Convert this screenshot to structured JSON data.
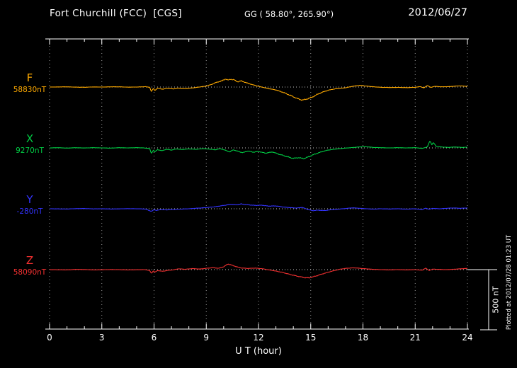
{
  "header": {
    "station": "Fort Churchill (FCC)  [CGS]",
    "coords": "GG ( 58.80°, 265.90°)",
    "date": "2012/06/27"
  },
  "axis": {
    "xlabel": "U T (hour)",
    "ticks": [
      "0",
      "3",
      "6",
      "9",
      "12",
      "15",
      "18",
      "21",
      "24"
    ]
  },
  "scale_bar": {
    "label": "500 nT",
    "value_nT": 500
  },
  "plotted_at": "Plotted at 2012/07/28 01:23 UT",
  "chart_data": {
    "type": "line",
    "title": "Fort Churchill (FCC) magnetogram 2012/06/27",
    "xlabel": "U T (hour)",
    "x_range": [
      0,
      24
    ],
    "grid_hours": [
      0,
      3,
      6,
      9,
      12,
      15,
      18,
      21,
      24
    ],
    "grid": "dotted",
    "scale_nT_per_division": 500,
    "series": [
      {
        "name": "F",
        "baseline_label": "58830nT",
        "baseline_nT": 58830,
        "color": "#ffaa00",
        "points": [
          [
            0,
            0
          ],
          [
            0.5,
            1
          ],
          [
            1,
            2
          ],
          [
            1.5,
            -1
          ],
          [
            2,
            -2
          ],
          [
            2.5,
            1
          ],
          [
            3,
            0
          ],
          [
            3.5,
            2
          ],
          [
            4,
            2
          ],
          [
            4.5,
            -1
          ],
          [
            5,
            0
          ],
          [
            5.5,
            3
          ],
          [
            5.75,
            -2
          ],
          [
            5.85,
            -40
          ],
          [
            5.95,
            -12
          ],
          [
            6.05,
            -28
          ],
          [
            6.2,
            -10
          ],
          [
            6.5,
            -18
          ],
          [
            6.8,
            -10
          ],
          [
            7.1,
            -16
          ],
          [
            7.4,
            -9
          ],
          [
            7.7,
            -14
          ],
          [
            8,
            -10
          ],
          [
            8.3,
            -6
          ],
          [
            8.6,
            0
          ],
          [
            9,
            8
          ],
          [
            9.3,
            22
          ],
          [
            9.6,
            40
          ],
          [
            9.9,
            52
          ],
          [
            10.1,
            68
          ],
          [
            10.25,
            58
          ],
          [
            10.4,
            66
          ],
          [
            10.6,
            60
          ],
          [
            10.8,
            44
          ],
          [
            11,
            52
          ],
          [
            11.3,
            36
          ],
          [
            11.6,
            22
          ],
          [
            12,
            6
          ],
          [
            12.3,
            -4
          ],
          [
            12.6,
            -14
          ],
          [
            13,
            -24
          ],
          [
            13.4,
            -44
          ],
          [
            13.8,
            -68
          ],
          [
            14.2,
            -95
          ],
          [
            14.5,
            -110
          ],
          [
            14.8,
            -100
          ],
          [
            15.1,
            -84
          ],
          [
            15.4,
            -60
          ],
          [
            15.8,
            -36
          ],
          [
            16.2,
            -20
          ],
          [
            16.6,
            -12
          ],
          [
            17,
            -6
          ],
          [
            17.4,
            6
          ],
          [
            17.8,
            14
          ],
          [
            18.2,
            8
          ],
          [
            18.6,
            2
          ],
          [
            19,
            -2
          ],
          [
            19.5,
            -4
          ],
          [
            20,
            -3
          ],
          [
            20.5,
            -5
          ],
          [
            21,
            -2
          ],
          [
            21.3,
            4
          ],
          [
            21.5,
            -8
          ],
          [
            21.7,
            14
          ],
          [
            21.9,
            -4
          ],
          [
            22.1,
            6
          ],
          [
            22.5,
            2
          ],
          [
            23,
            4
          ],
          [
            23.5,
            10
          ],
          [
            23.8,
            8
          ],
          [
            24,
            6
          ]
        ]
      },
      {
        "name": "X",
        "baseline_label": "9270nT",
        "baseline_nT": 9270,
        "color": "#00cc44",
        "points": [
          [
            0,
            0
          ],
          [
            0.5,
            2
          ],
          [
            1,
            -2
          ],
          [
            1.5,
            2
          ],
          [
            2,
            -1
          ],
          [
            2.5,
            2
          ],
          [
            3,
            0
          ],
          [
            3.5,
            -2
          ],
          [
            4,
            2
          ],
          [
            4.5,
            0
          ],
          [
            5,
            2
          ],
          [
            5.4,
            0
          ],
          [
            5.75,
            -6
          ],
          [
            5.85,
            -48
          ],
          [
            5.95,
            -18
          ],
          [
            6.05,
            -34
          ],
          [
            6.2,
            -14
          ],
          [
            6.45,
            -24
          ],
          [
            6.7,
            -12
          ],
          [
            7,
            -18
          ],
          [
            7.3,
            -8
          ],
          [
            7.6,
            -14
          ],
          [
            8,
            -8
          ],
          [
            8.4,
            -12
          ],
          [
            8.8,
            -6
          ],
          [
            9.2,
            -10
          ],
          [
            9.5,
            -16
          ],
          [
            9.8,
            -6
          ],
          [
            10.1,
            -20
          ],
          [
            10.35,
            -34
          ],
          [
            10.55,
            -16
          ],
          [
            10.8,
            -28
          ],
          [
            11.1,
            -40
          ],
          [
            11.4,
            -26
          ],
          [
            11.7,
            -36
          ],
          [
            12,
            -30
          ],
          [
            12.4,
            -44
          ],
          [
            12.8,
            -34
          ],
          [
            13.2,
            -54
          ],
          [
            13.6,
            -72
          ],
          [
            14,
            -88
          ],
          [
            14.3,
            -82
          ],
          [
            14.6,
            -90
          ],
          [
            14.9,
            -74
          ],
          [
            15.2,
            -54
          ],
          [
            15.6,
            -34
          ],
          [
            16,
            -18
          ],
          [
            16.4,
            -10
          ],
          [
            16.8,
            -4
          ],
          [
            17.3,
            2
          ],
          [
            17.8,
            8
          ],
          [
            18.2,
            10
          ],
          [
            18.6,
            4
          ],
          [
            19,
            2
          ],
          [
            19.5,
            0
          ],
          [
            20,
            2
          ],
          [
            20.5,
            0
          ],
          [
            21,
            2
          ],
          [
            21.4,
            -4
          ],
          [
            21.7,
            8
          ],
          [
            21.85,
            62
          ],
          [
            21.95,
            26
          ],
          [
            22.05,
            44
          ],
          [
            22.2,
            14
          ],
          [
            22.5,
            8
          ],
          [
            22.9,
            4
          ],
          [
            23.3,
            8
          ],
          [
            23.7,
            4
          ],
          [
            24,
            6
          ]
        ]
      },
      {
        "name": "Y",
        "baseline_label": "-280nT",
        "baseline_nT": -280,
        "color": "#3333ff",
        "points": [
          [
            0,
            0
          ],
          [
            0.5,
            -1
          ],
          [
            1,
            -2
          ],
          [
            1.5,
            1
          ],
          [
            2,
            2
          ],
          [
            2.5,
            -1
          ],
          [
            3,
            0
          ],
          [
            3.5,
            -2
          ],
          [
            4,
            -1
          ],
          [
            4.5,
            1
          ],
          [
            5,
            0
          ],
          [
            5.5,
            -2
          ],
          [
            5.85,
            -22
          ],
          [
            6,
            -8
          ],
          [
            6.15,
            -14
          ],
          [
            6.4,
            -6
          ],
          [
            6.7,
            -10
          ],
          [
            7,
            -6
          ],
          [
            7.5,
            -3
          ],
          [
            8,
            0
          ],
          [
            8.5,
            5
          ],
          [
            9,
            10
          ],
          [
            9.5,
            17
          ],
          [
            10,
            28
          ],
          [
            10.4,
            38
          ],
          [
            10.7,
            34
          ],
          [
            11,
            40
          ],
          [
            11.4,
            34
          ],
          [
            11.8,
            28
          ],
          [
            12.2,
            30
          ],
          [
            12.6,
            22
          ],
          [
            13,
            24
          ],
          [
            13.4,
            15
          ],
          [
            13.8,
            10
          ],
          [
            14.2,
            6
          ],
          [
            14.5,
            12
          ],
          [
            14.8,
            -4
          ],
          [
            15.1,
            -16
          ],
          [
            15.4,
            -12
          ],
          [
            15.8,
            -15
          ],
          [
            16.2,
            -8
          ],
          [
            16.6,
            -3
          ],
          [
            17,
            2
          ],
          [
            17.4,
            8
          ],
          [
            17.8,
            4
          ],
          [
            18.2,
            0
          ],
          [
            18.6,
            -3
          ],
          [
            19,
            0
          ],
          [
            19.5,
            -2
          ],
          [
            20,
            0
          ],
          [
            20.5,
            -3
          ],
          [
            21,
            0
          ],
          [
            21.4,
            -7
          ],
          [
            21.6,
            5
          ],
          [
            21.8,
            -4
          ],
          [
            22,
            3
          ],
          [
            22.4,
            0
          ],
          [
            22.8,
            4
          ],
          [
            23.2,
            7
          ],
          [
            23.6,
            4
          ],
          [
            24,
            7
          ]
        ]
      },
      {
        "name": "Z",
        "baseline_label": "58090nT",
        "baseline_nT": 58090,
        "color": "#f23030",
        "points": [
          [
            0,
            0
          ],
          [
            0.5,
            -1
          ],
          [
            1,
            -2
          ],
          [
            1.5,
            2
          ],
          [
            2,
            1
          ],
          [
            2.5,
            -2
          ],
          [
            3,
            -1
          ],
          [
            3.5,
            1
          ],
          [
            4,
            0
          ],
          [
            4.5,
            -2
          ],
          [
            5,
            -1
          ],
          [
            5.5,
            0
          ],
          [
            5.75,
            -8
          ],
          [
            5.85,
            -32
          ],
          [
            5.95,
            -10
          ],
          [
            6.05,
            -22
          ],
          [
            6.2,
            -8
          ],
          [
            6.5,
            -14
          ],
          [
            6.8,
            -6
          ],
          [
            7.1,
            -2
          ],
          [
            7.4,
            7
          ],
          [
            7.8,
            3
          ],
          [
            8.2,
            9
          ],
          [
            8.6,
            5
          ],
          [
            9,
            11
          ],
          [
            9.4,
            17
          ],
          [
            9.7,
            11
          ],
          [
            10,
            24
          ],
          [
            10.25,
            48
          ],
          [
            10.45,
            38
          ],
          [
            10.7,
            26
          ],
          [
            11,
            14
          ],
          [
            11.4,
            10
          ],
          [
            11.8,
            13
          ],
          [
            12.2,
            8
          ],
          [
            12.6,
            -2
          ],
          [
            13,
            -12
          ],
          [
            13.4,
            -24
          ],
          [
            13.8,
            -40
          ],
          [
            14.2,
            -54
          ],
          [
            14.6,
            -66
          ],
          [
            14.9,
            -70
          ],
          [
            15.2,
            -58
          ],
          [
            15.5,
            -44
          ],
          [
            15.9,
            -26
          ],
          [
            16.3,
            -10
          ],
          [
            16.7,
            4
          ],
          [
            17.1,
            12
          ],
          [
            17.5,
            15
          ],
          [
            18,
            9
          ],
          [
            18.5,
            3
          ],
          [
            19,
            0
          ],
          [
            19.5,
            -2
          ],
          [
            20,
            0
          ],
          [
            20.5,
            -2
          ],
          [
            21,
            0
          ],
          [
            21.4,
            -5
          ],
          [
            21.6,
            13
          ],
          [
            21.8,
            -7
          ],
          [
            22,
            4
          ],
          [
            22.4,
            2
          ],
          [
            22.8,
            0
          ],
          [
            23.2,
            3
          ],
          [
            23.6,
            7
          ],
          [
            24,
            10
          ]
        ]
      }
    ]
  }
}
